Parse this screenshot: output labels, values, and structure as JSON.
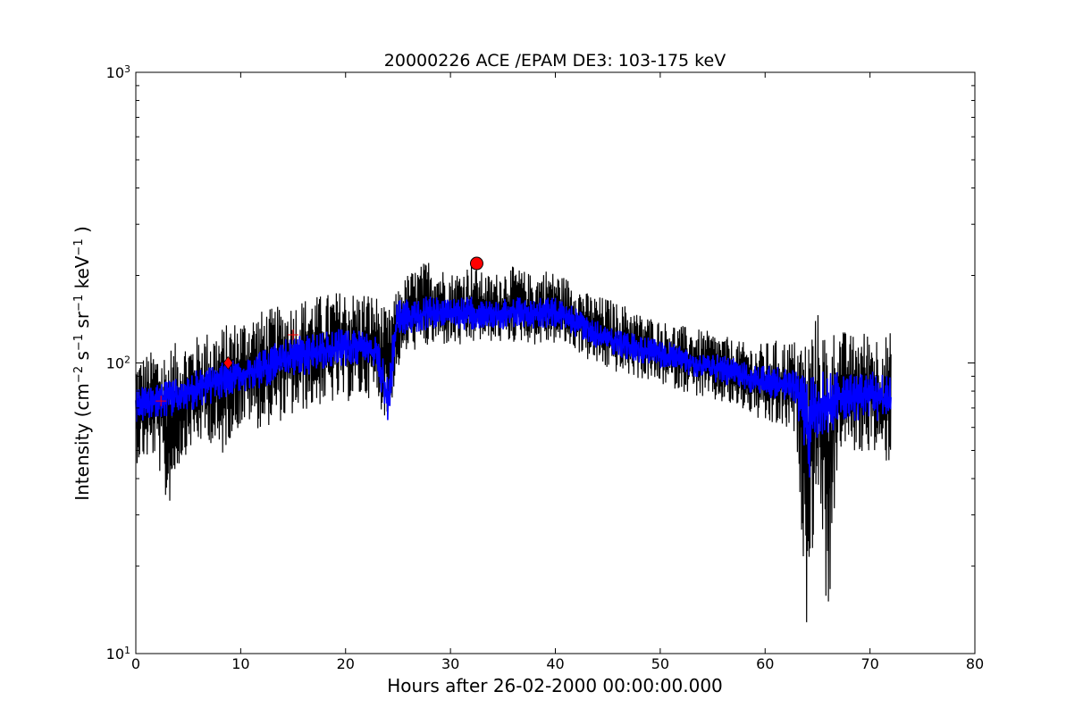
{
  "chart_data": {
    "type": "line",
    "title": "20000226 ACE /EPAM DE3: 103-175 keV",
    "xlabel": "Hours after 26-02-2000 00:00:00.000",
    "ylabel": {
      "prefix": "Intensity (cm",
      "sup1": "−2",
      "mid1": " s",
      "sup2": "−1",
      "mid2": " sr",
      "sup3": "−1",
      "mid3": " keV",
      "sup4": "−1",
      "suffix": " )"
    },
    "xlim": [
      0,
      80
    ],
    "ylim": [
      10,
      1000
    ],
    "yscale": "log",
    "grid": false,
    "x_ticks": [
      {
        "value": 0,
        "label": "0"
      },
      {
        "value": 10,
        "label": "10"
      },
      {
        "value": 20,
        "label": "20"
      },
      {
        "value": 30,
        "label": "30"
      },
      {
        "value": 40,
        "label": "40"
      },
      {
        "value": 50,
        "label": "50"
      },
      {
        "value": 60,
        "label": "60"
      },
      {
        "value": 70,
        "label": "70"
      },
      {
        "value": 80,
        "label": "80"
      }
    ],
    "y_ticks": [
      {
        "value": 10,
        "base": "10",
        "exp": "1"
      },
      {
        "value": 100,
        "base": "10",
        "exp": "2"
      },
      {
        "value": 1000,
        "base": "10",
        "exp": "3"
      }
    ],
    "series": [
      {
        "style": "raw",
        "color": "#000000",
        "x": [
          0,
          1,
          2,
          3,
          4,
          5,
          6,
          7,
          8,
          9,
          10,
          11,
          12,
          13,
          14,
          15,
          16,
          17,
          18,
          19,
          20,
          21,
          22,
          23,
          24,
          25,
          26,
          27,
          28,
          29,
          30,
          31,
          32,
          33,
          34,
          35,
          36,
          37,
          38,
          39,
          40,
          41,
          42,
          43,
          44,
          45,
          46,
          47,
          48,
          49,
          50,
          51,
          52,
          53,
          54,
          55,
          56,
          57,
          58,
          59,
          60,
          61,
          62,
          63,
          64,
          65,
          66,
          67,
          68,
          69,
          70,
          71,
          72
        ],
        "y_low": [
          45,
          46,
          47,
          30,
          43,
          50,
          52,
          54,
          45,
          55,
          60,
          62,
          58,
          62,
          63,
          65,
          68,
          70,
          72,
          72,
          73,
          74,
          76,
          74,
          62,
          95,
          110,
          110,
          112,
          114,
          115,
          112,
          115,
          118,
          118,
          116,
          117,
          118,
          115,
          115,
          116,
          114,
          110,
          102,
          98,
          94,
          92,
          90,
          88,
          86,
          84,
          82,
          80,
          78,
          75,
          73,
          72,
          70,
          68,
          65,
          60,
          60,
          58,
          55,
          12,
          40,
          12,
          50,
          50,
          48,
          50,
          45,
          45
        ],
        "y_high": [
          105,
          108,
          112,
          115,
          118,
          120,
          125,
          130,
          133,
          138,
          142,
          148,
          152,
          155,
          158,
          162,
          168,
          170,
          173,
          176,
          180,
          175,
          178,
          170,
          150,
          180,
          205,
          215,
          230,
          215,
          205,
          210,
          225,
          205,
          200,
          212,
          215,
          208,
          200,
          212,
          205,
          198,
          188,
          175,
          170,
          168,
          160,
          158,
          148,
          145,
          140,
          138,
          135,
          132,
          130,
          128,
          125,
          120,
          118,
          115,
          118,
          120,
          120,
          120,
          130,
          150,
          130,
          135,
          125,
          128,
          130,
          125,
          128
        ]
      },
      {
        "style": "smoothed",
        "color": "#0000ff",
        "x": [
          0,
          1,
          2,
          3,
          4,
          5,
          6,
          7,
          8,
          9,
          10,
          11,
          12,
          13,
          14,
          15,
          16,
          17,
          18,
          19,
          20,
          21,
          22,
          23,
          24,
          25,
          26,
          27,
          28,
          29,
          30,
          31,
          32,
          33,
          34,
          35,
          36,
          37,
          38,
          39,
          40,
          41,
          42,
          43,
          44,
          45,
          46,
          47,
          48,
          49,
          50,
          51,
          52,
          53,
          54,
          55,
          56,
          57,
          58,
          59,
          60,
          61,
          62,
          63,
          64,
          65,
          66,
          67,
          68,
          69,
          70,
          71,
          72
        ],
        "y_low": [
          62,
          63,
          64,
          65,
          66,
          68,
          70,
          72,
          74,
          76,
          78,
          80,
          82,
          84,
          86,
          88,
          90,
          92,
          94,
          96,
          97,
          98,
          100,
          95,
          60,
          125,
          125,
          128,
          130,
          132,
          130,
          128,
          130,
          132,
          132,
          130,
          132,
          132,
          130,
          132,
          132,
          128,
          122,
          118,
          112,
          108,
          105,
          102,
          100,
          98,
          96,
          94,
          92,
          90,
          88,
          86,
          84,
          82,
          80,
          78,
          76,
          75,
          74,
          72,
          35,
          55,
          55,
          62,
          64,
          62,
          64,
          62,
          62
        ],
        "y_high": [
          82,
          84,
          86,
          88,
          90,
          92,
          95,
          98,
          100,
          103,
          106,
          110,
          112,
          116,
          120,
          122,
          125,
          126,
          128,
          130,
          132,
          130,
          128,
          125,
          95,
          170,
          165,
          168,
          170,
          168,
          165,
          168,
          170,
          165,
          165,
          170,
          172,
          168,
          165,
          170,
          168,
          162,
          155,
          148,
          140,
          135,
          130,
          128,
          125,
          122,
          120,
          118,
          115,
          112,
          110,
          108,
          106,
          104,
          102,
          100,
          98,
          98,
          96,
          95,
          90,
          95,
          92,
          94,
          92,
          92,
          95,
          92,
          92
        ]
      }
    ],
    "markers": [
      {
        "shape": "plus",
        "color": "#ff0000",
        "x": 2.4,
        "y": 74
      },
      {
        "shape": "diamond",
        "color": "#ff0000",
        "x": 8.8,
        "y": 100
      },
      {
        "shape": "plus",
        "color": "#ff0000",
        "x": 15.0,
        "y": 125
      },
      {
        "shape": "circle",
        "color": "#ff0000",
        "x": 32.5,
        "y": 220
      }
    ]
  }
}
